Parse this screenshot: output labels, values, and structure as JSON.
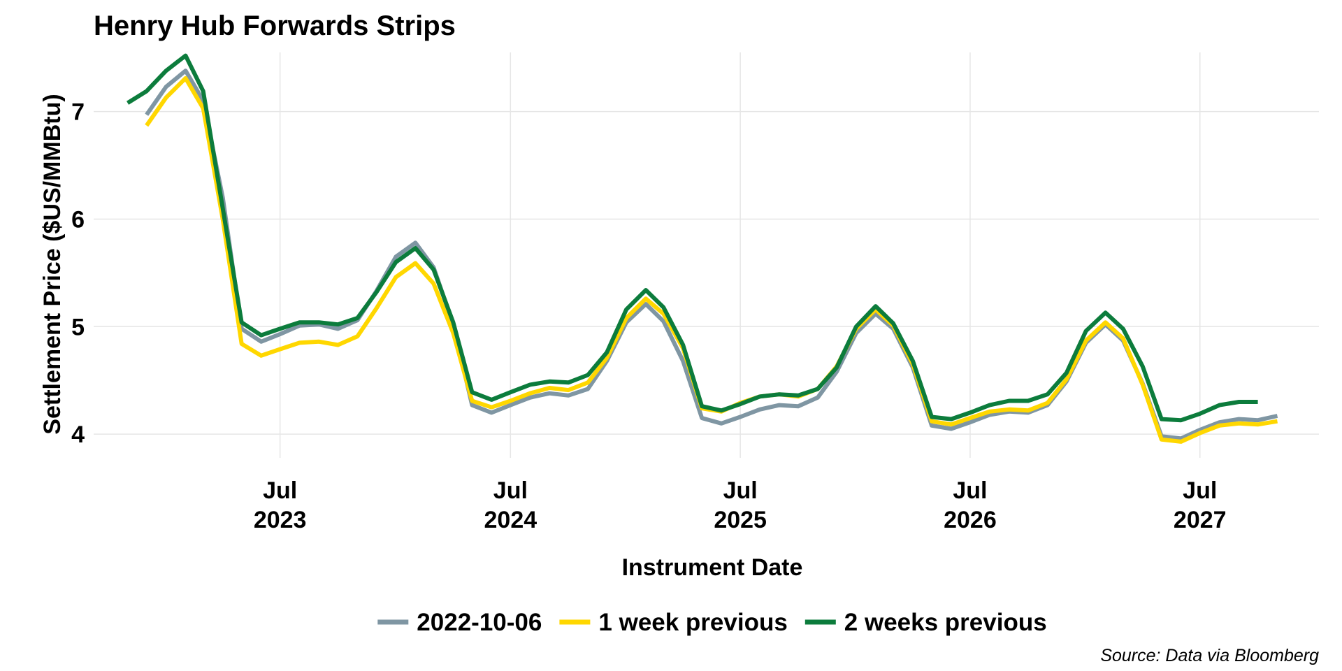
{
  "chart_data": {
    "type": "line",
    "title": "Henry Hub Forwards Strips",
    "xlabel": "Instrument Date",
    "ylabel": "Settlement Price ($US/MMBtu)",
    "caption": "Source: Data via Bloomberg",
    "ylim": [
      3.78,
      7.55
    ],
    "xlim": [
      "2022-09-08",
      "2028-01-06"
    ],
    "y_ticks": [
      4,
      5,
      6,
      7
    ],
    "x_ticks": [
      {
        "date": "2023-07-01",
        "month": "Jul",
        "year": "2023"
      },
      {
        "date": "2024-07-01",
        "month": "Jul",
        "year": "2024"
      },
      {
        "date": "2025-07-01",
        "month": "Jul",
        "year": "2025"
      },
      {
        "date": "2026-07-01",
        "month": "Jul",
        "year": "2026"
      },
      {
        "date": "2027-07-01",
        "month": "Jul",
        "year": "2027"
      }
    ],
    "grid": true,
    "legend_position": "bottom",
    "series": [
      {
        "name": "2022-10-06",
        "color": "#7f96a3",
        "start": "2022-12-01",
        "values": [
          6.97,
          7.23,
          7.38,
          7.1,
          6.2,
          4.98,
          4.86,
          4.93,
          5.01,
          5.02,
          4.98,
          5.06,
          5.33,
          5.65,
          5.78,
          5.55,
          5.02,
          4.27,
          4.2,
          4.27,
          4.34,
          4.38,
          4.36,
          4.42,
          4.68,
          5.04,
          5.21,
          5.05,
          4.68,
          4.15,
          4.1,
          4.16,
          4.23,
          4.27,
          4.26,
          4.34,
          4.58,
          4.94,
          5.12,
          4.98,
          4.62,
          4.08,
          4.05,
          4.11,
          4.18,
          4.21,
          4.2,
          4.27,
          4.49,
          4.85,
          5.02,
          4.87,
          4.47,
          3.98,
          3.96,
          4.04,
          4.11,
          4.14,
          4.13,
          4.17
        ]
      },
      {
        "name": "1 week previous",
        "color": "#ffd700",
        "start": "2022-12-01",
        "values": [
          6.87,
          7.13,
          7.31,
          7.03,
          6.0,
          4.84,
          4.73,
          4.79,
          4.85,
          4.86,
          4.83,
          4.91,
          5.17,
          5.46,
          5.59,
          5.4,
          4.94,
          4.31,
          4.25,
          4.31,
          4.38,
          4.43,
          4.41,
          4.48,
          4.71,
          5.08,
          5.26,
          5.12,
          4.8,
          4.24,
          4.21,
          4.29,
          4.35,
          4.37,
          4.35,
          4.42,
          4.63,
          4.98,
          5.16,
          5.01,
          4.65,
          4.12,
          4.09,
          4.15,
          4.21,
          4.23,
          4.22,
          4.29,
          4.51,
          4.87,
          5.04,
          4.89,
          4.46,
          3.95,
          3.93,
          4.01,
          4.08,
          4.1,
          4.09,
          4.12
        ]
      },
      {
        "name": "2 weeks previous",
        "color": "#0c7c3c",
        "start": "2022-11-01",
        "values": [
          7.08,
          7.19,
          7.38,
          7.52,
          7.19,
          6.1,
          5.04,
          4.92,
          4.98,
          5.04,
          5.04,
          5.02,
          5.08,
          5.32,
          5.6,
          5.73,
          5.53,
          5.04,
          4.39,
          4.32,
          4.39,
          4.46,
          4.49,
          4.48,
          4.55,
          4.76,
          5.16,
          5.34,
          5.18,
          4.83,
          4.26,
          4.22,
          4.28,
          4.35,
          4.37,
          4.36,
          4.42,
          4.62,
          5.0,
          5.19,
          5.03,
          4.68,
          4.16,
          4.14,
          4.2,
          4.27,
          4.31,
          4.31,
          4.37,
          4.57,
          4.96,
          5.13,
          4.98,
          4.63,
          4.14,
          4.13,
          4.19,
          4.27,
          4.3,
          4.3
        ]
      }
    ]
  }
}
